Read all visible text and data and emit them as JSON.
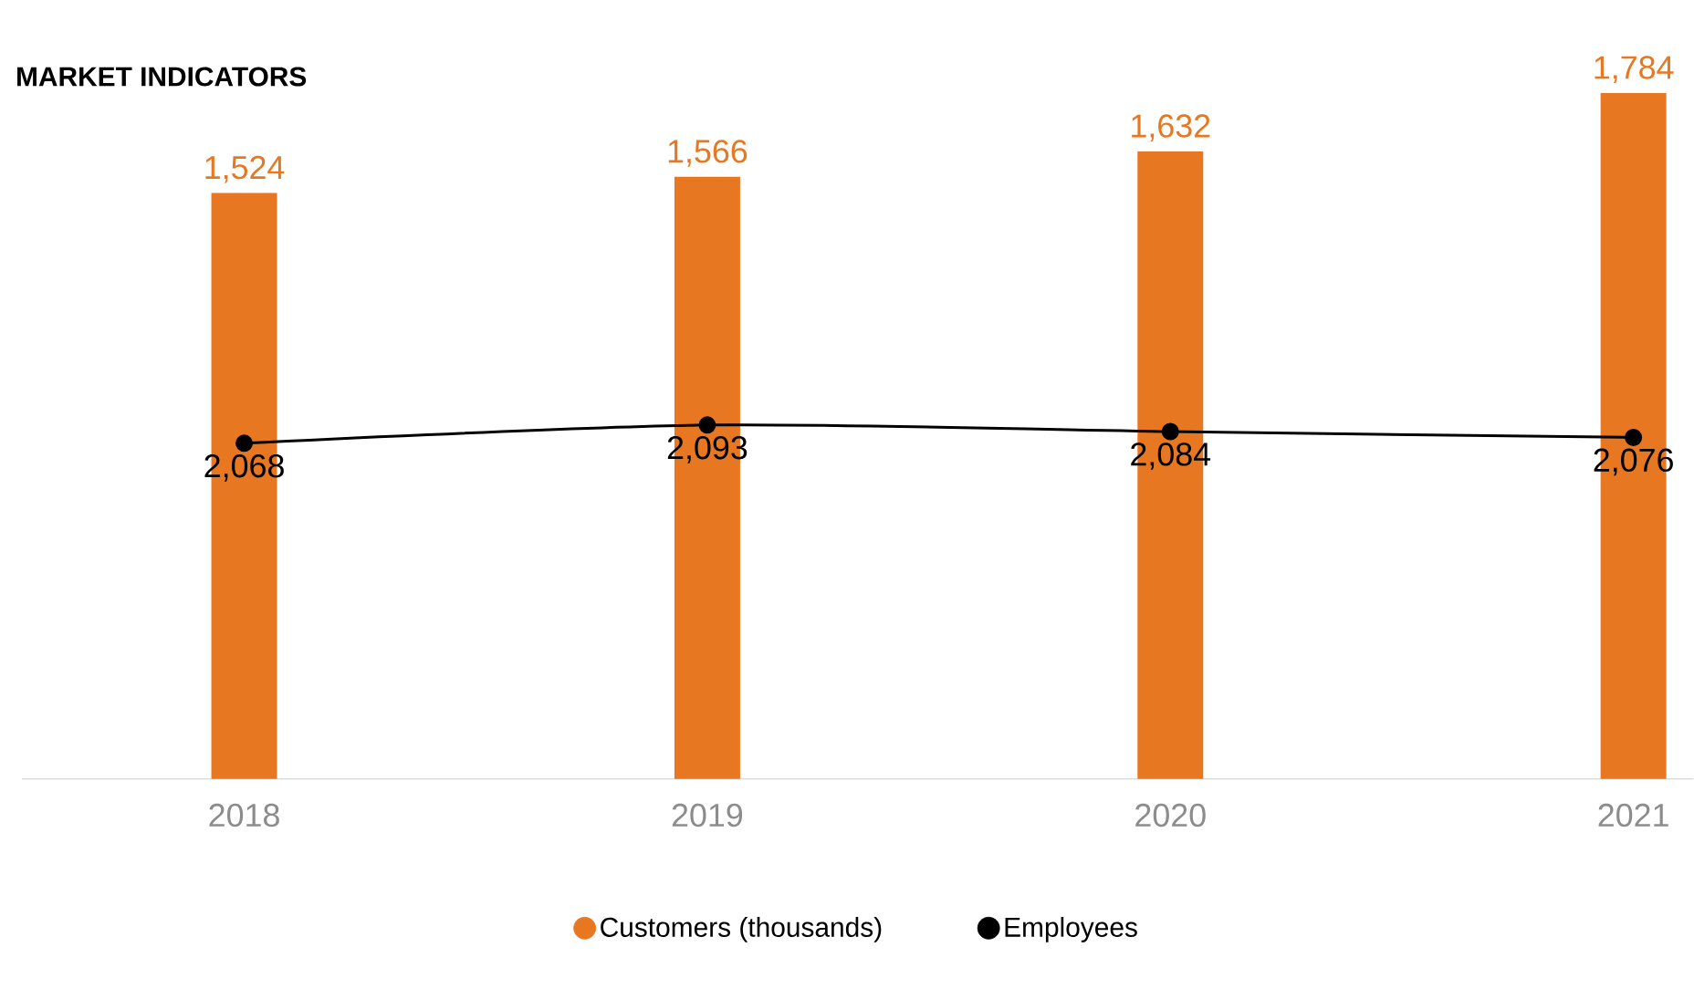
{
  "chart_data": {
    "type": "bar",
    "title": "MARKET INDICATORS",
    "categories": [
      "2018",
      "2019",
      "2020",
      "2021"
    ],
    "series": [
      {
        "name": "Customers (thousands)",
        "color": "#e87722",
        "values": [
          1524,
          1566,
          1632,
          1784
        ],
        "value_labels": [
          "1,524",
          "1,566",
          "1,632",
          "1,784"
        ]
      },
      {
        "name": "Employees",
        "type": "line",
        "axis": "y2",
        "color": "#000000",
        "values": [
          2068,
          2093,
          2084,
          2076
        ],
        "value_labels": [
          "2,068",
          "2,093",
          "2,084",
          "2,076"
        ]
      }
    ],
    "ylim": [
      0,
      1784
    ],
    "y2lim": [
      1608,
      2548
    ],
    "marker": "circle",
    "legend": "bottom",
    "tick_labels": "x"
  }
}
